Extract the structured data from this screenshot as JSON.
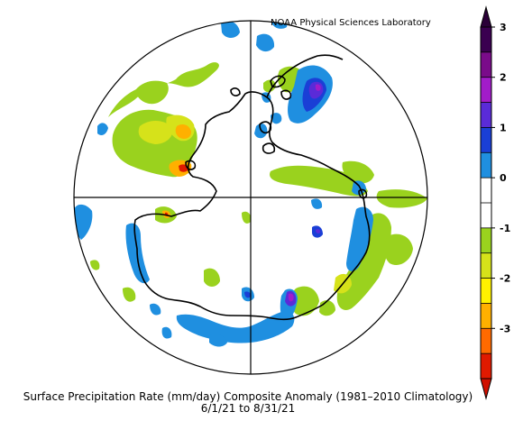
{
  "credit": "NOAA Physical Sciences Laboratory",
  "title": "Surface Precipitation Rate (mm/day) Composite Anomaly (1981–2010 Climatology)",
  "subtitle": "6/1/21   to 8/31/21",
  "colorbar": {
    "ticks": [
      "3",
      "2",
      "1",
      "0",
      "-1",
      "-2",
      "-3"
    ],
    "bins": [
      {
        "color": "#3a0050"
      },
      {
        "color": "#7a0b8a"
      },
      {
        "color": "#a21cc9"
      },
      {
        "color": "#5a2bd8"
      },
      {
        "color": "#1a3fd6"
      },
      {
        "color": "#1f8fe0"
      },
      {
        "color": "#ffffff"
      },
      {
        "color": "#ffffff"
      },
      {
        "color": "#9ad21e"
      },
      {
        "color": "#d6e21a"
      },
      {
        "color": "#fff200"
      },
      {
        "color": "#ffb000"
      },
      {
        "color": "#ff6a00"
      },
      {
        "color": "#e01a00"
      }
    ]
  },
  "map": {
    "projection": "polar-stereographic-south",
    "outline_color": "#000000"
  }
}
